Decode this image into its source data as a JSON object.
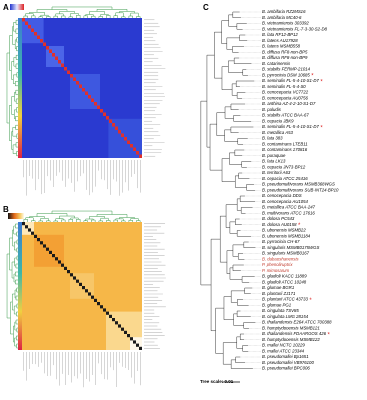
{
  "panels": [
    {
      "label": "A"
    },
    {
      "label": "B"
    },
    {
      "label": "C",
      "scale_label": "Tree scale: 0.01",
      "leaves": [
        {
          "text": "B. ambifaria RZ2MS16"
        },
        {
          "text": "B. ambifaria MC40-6"
        },
        {
          "text": "B. vietnamiensis 303392"
        },
        {
          "text": "B. vietnamiensis FL-7-3-30-S2-D8"
        },
        {
          "text": "B. lata RF12-BP12"
        },
        {
          "text": "B. latens AU17928"
        },
        {
          "text": "B. latens MSMB558"
        },
        {
          "text": "B. diffusa RF8-non-BP5"
        },
        {
          "text": "B. diffusa RF8-non-BP9"
        },
        {
          "text": "B. catarinensis"
        },
        {
          "text": "B. stabilis FERMP-21014"
        },
        {
          "text": "B. pyrrocinia DSM 10685",
          "mark": "*"
        },
        {
          "text": "B. seminalis FL-5-4-10-S1-D7",
          "mark": "*"
        },
        {
          "text": "B. seminalis FL-5-4-S0"
        },
        {
          "text": "B. cenocepacia VC7722"
        },
        {
          "text": "B. cenocepacia AU0756"
        },
        {
          "text": "B. anthina AZ-4-2-10-S1-D7"
        },
        {
          "text": "B. paludis"
        },
        {
          "text": "B. stabilis ATCC BAA-67"
        },
        {
          "text": "B. cepacia JBK9"
        },
        {
          "text": "B. seminalis FL-5-4-10-S1-D7",
          "mark": "*"
        },
        {
          "text": "B. metallica A53"
        },
        {
          "text": "B. lata 383"
        },
        {
          "text": "B. contaminans LTEB11"
        },
        {
          "text": "B. contaminans 170816"
        },
        {
          "text": "B. puraquae"
        },
        {
          "text": "B. lata LK13"
        },
        {
          "text": "B. cepacia JN73-BP12"
        },
        {
          "text": "B. territorii A63"
        },
        {
          "text": "B. cepacia ATCC 25416"
        },
        {
          "text": "B. pseudomultivorans MSMB368WGS"
        },
        {
          "text": "B. pseudomultivorans SUB-INT24-BP10"
        },
        {
          "text": "B. cenocepacia DDS"
        },
        {
          "text": "B. cenocepacia AU1054"
        },
        {
          "text": "B. metallica ATCC BAA-247"
        },
        {
          "text": "B. multivorans ATCC 17616"
        },
        {
          "text": "B. dolosa PC543"
        },
        {
          "text": "B. dolosa AU0158",
          "mark": "*"
        },
        {
          "text": "B. ubonensis MSMB22"
        },
        {
          "text": "B. ubonensis MSMB1184"
        },
        {
          "text": "B. pyrrocinia CH-67"
        },
        {
          "text": "B. singularis MSMB0175WGS"
        },
        {
          "text": "B. singularis MSMB0167"
        },
        {
          "text": "B. dabaoshanensis",
          "color": "#c0392b"
        },
        {
          "text": "P. phenoliruptrix",
          "color": "#c0392b"
        },
        {
          "text": "P. mimosarum",
          "color": "#c0392b"
        },
        {
          "text": "B. gladioli KACC 11889"
        },
        {
          "text": "B. gladioli ATCC 10248"
        },
        {
          "text": "B. glumae BGR1"
        },
        {
          "text": "B. plantarii ZJ171"
        },
        {
          "text": "B. plantarii ATCC 43733",
          "mark": "*"
        },
        {
          "text": "B. glumae PG1"
        },
        {
          "text": "B. cingulata TSV85"
        },
        {
          "text": "B. cingulata LMG 28154"
        },
        {
          "text": "B. thailandensis E264 ATCC 700388"
        },
        {
          "text": "B. humptydooensis MSMB121"
        },
        {
          "text": "B. thailandensis FDAARGOS 426",
          "mark": "*"
        },
        {
          "text": "B. humptydooensis MSMB122"
        },
        {
          "text": "B. mallei NCTC 10229"
        },
        {
          "text": "B. mallei ATCC 23344"
        },
        {
          "text": "B. pseudomallei Bp1651"
        },
        {
          "text": "B. pseudomallei VB976100"
        },
        {
          "text": "B. pseudomallei BPC006"
        }
      ]
    }
  ]
}
